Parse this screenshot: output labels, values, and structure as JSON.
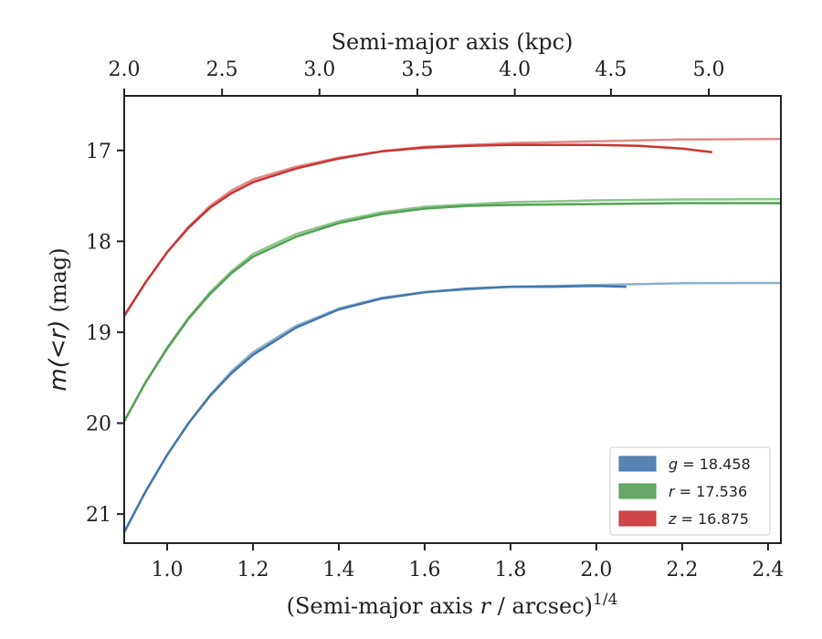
{
  "chart_data": {
    "type": "line",
    "title": "",
    "xlabel": "(Semi-major axis r / arcsec)",
    "xlabel_italic_part": "r",
    "xlabel_prefix": "(Semi-major axis ",
    "xlabel_suffix": " / arcsec)",
    "xlabel_sup": "1/4",
    "x2label": "Semi-major axis (kpc)",
    "ylabel_main": "m(<r)",
    "ylabel_unit": "(mag)",
    "xlim": [
      0.9,
      2.43
    ],
    "ylim": [
      21.32,
      16.4
    ],
    "y_inverted": true,
    "x_ticks": [
      1.0,
      1.2,
      1.4,
      1.6,
      1.8,
      2.0,
      2.2,
      2.4
    ],
    "x_tick_labels": [
      "1.0",
      "1.2",
      "1.4",
      "1.6",
      "1.8",
      "2.0",
      "2.2",
      "2.4"
    ],
    "y_ticks": [
      17,
      18,
      19,
      20,
      21
    ],
    "y_tick_labels": [
      "17",
      "18",
      "19",
      "20",
      "21"
    ],
    "x2_ticks_kpc": [
      2.0,
      2.5,
      3.0,
      3.5,
      4.0,
      4.5,
      5.0
    ],
    "x2_tick_labels": [
      "2.0",
      "2.5",
      "3.0",
      "3.5",
      "4.0",
      "4.5",
      "5.0"
    ],
    "x2_tick_positions_x": [
      0.9,
      1.128,
      1.355,
      1.583,
      1.81,
      2.034,
      2.262
    ],
    "grid": false,
    "legend_position": "lower-right",
    "series": [
      {
        "name": "g = 18.458",
        "band": "g",
        "value": "= 18.458",
        "color": "#4477aa",
        "model_color": "#8fb0c9",
        "data": {
          "x": [
            0.9,
            0.95,
            1.0,
            1.05,
            1.1,
            1.15,
            1.2,
            1.3,
            1.4,
            1.5,
            1.6,
            1.7,
            1.8,
            1.9,
            2.0,
            2.07
          ],
          "y": [
            21.2,
            20.75,
            20.35,
            20.0,
            19.7,
            19.45,
            19.25,
            18.95,
            18.75,
            18.63,
            18.56,
            18.52,
            18.5,
            18.5,
            18.49,
            18.5
          ]
        },
        "model": {
          "x": [
            0.9,
            0.95,
            1.0,
            1.05,
            1.1,
            1.15,
            1.2,
            1.3,
            1.4,
            1.5,
            1.6,
            1.8,
            2.0,
            2.2,
            2.43
          ],
          "y": [
            21.2,
            20.75,
            20.35,
            20.0,
            19.69,
            19.43,
            19.22,
            18.93,
            18.74,
            18.62,
            18.56,
            18.5,
            18.48,
            18.46,
            18.458
          ]
        }
      },
      {
        "name": "r = 17.536",
        "band": "r",
        "value": "= 17.536",
        "color": "#55a055",
        "model_color": "#8cc48c",
        "data": {
          "x": [
            0.9,
            0.95,
            1.0,
            1.05,
            1.1,
            1.15,
            1.2,
            1.3,
            1.4,
            1.5,
            1.6,
            1.7,
            1.8,
            2.0,
            2.2,
            2.43
          ],
          "y": [
            19.98,
            19.55,
            19.18,
            18.85,
            18.58,
            18.35,
            18.17,
            17.95,
            17.8,
            17.7,
            17.64,
            17.61,
            17.6,
            17.59,
            17.58,
            17.58
          ]
        },
        "model": {
          "x": [
            0.9,
            0.95,
            1.0,
            1.05,
            1.1,
            1.15,
            1.2,
            1.3,
            1.4,
            1.5,
            1.6,
            1.8,
            2.0,
            2.2,
            2.43
          ],
          "y": [
            19.98,
            19.55,
            19.17,
            18.84,
            18.56,
            18.33,
            18.14,
            17.92,
            17.78,
            17.68,
            17.62,
            17.57,
            17.55,
            17.54,
            17.536
          ]
        }
      },
      {
        "name": "z = 16.875",
        "band": "z",
        "value": "= 16.875",
        "color": "#cc3333",
        "model_color": "#e08a8a",
        "data": {
          "x": [
            0.9,
            0.95,
            1.0,
            1.05,
            1.1,
            1.15,
            1.2,
            1.3,
            1.4,
            1.5,
            1.6,
            1.7,
            1.8,
            1.9,
            2.0,
            2.1,
            2.2,
            2.27
          ],
          "y": [
            18.82,
            18.45,
            18.12,
            17.85,
            17.63,
            17.47,
            17.35,
            17.2,
            17.09,
            17.01,
            16.97,
            16.95,
            16.94,
            16.94,
            16.94,
            16.95,
            16.98,
            17.02
          ]
        },
        "model": {
          "x": [
            0.9,
            0.95,
            1.0,
            1.05,
            1.1,
            1.15,
            1.2,
            1.3,
            1.4,
            1.5,
            1.6,
            1.8,
            2.0,
            2.2,
            2.43
          ],
          "y": [
            18.82,
            18.45,
            18.12,
            17.84,
            17.61,
            17.44,
            17.32,
            17.18,
            17.08,
            17.01,
            16.96,
            16.92,
            16.9,
            16.88,
            16.875
          ]
        }
      }
    ]
  }
}
